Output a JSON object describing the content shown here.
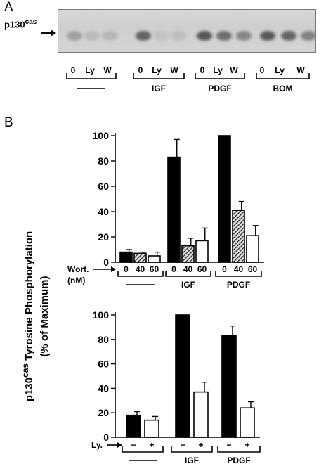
{
  "panel_a": {
    "letter": "A",
    "protein_label": "p130",
    "protein_sup": "cas",
    "lanes": [
      "0",
      "Ly",
      "W",
      "0",
      "Ly",
      "W",
      "0",
      "Ly",
      "W",
      "0",
      "Ly",
      "W"
    ],
    "lane_intensity": [
      0.25,
      0.12,
      0.14,
      0.55,
      0.08,
      0.1,
      0.62,
      0.5,
      0.38,
      0.6,
      0.55,
      0.4
    ],
    "groups": [
      "—",
      "IGF",
      "PDGF",
      "BOM"
    ]
  },
  "panel_b": {
    "letter": "B",
    "ylabel_main": "p130",
    "ylabel_sup": "cas",
    "ylabel_rest": "Tyrosine Phosphorylation",
    "ylabel_sub": "(% of Maximum)"
  },
  "chart_data": [
    {
      "type": "bar",
      "row_label": "Wort.",
      "row_sublabel": "(nM)",
      "categories": [
        "0",
        "40",
        "60",
        "0",
        "40",
        "60",
        "0",
        "40",
        "60"
      ],
      "groups": [
        "—",
        "IGF",
        "PDGF"
      ],
      "values": [
        8,
        7,
        5,
        83,
        13,
        17,
        100,
        41,
        21
      ],
      "errors": [
        2,
        1,
        3,
        14,
        6,
        10,
        0,
        7,
        8
      ],
      "fills": [
        "black",
        "hatched",
        "white",
        "black",
        "hatched",
        "white",
        "black",
        "hatched",
        "white"
      ],
      "ylim": [
        0,
        100
      ],
      "yticks": [
        "0",
        "20",
        "40",
        "60",
        "80",
        "100"
      ]
    },
    {
      "type": "bar",
      "row_label": "Ly.",
      "categories": [
        "−",
        "+",
        "−",
        "+",
        "−",
        "+"
      ],
      "groups": [
        "—",
        "IGF",
        "PDGF"
      ],
      "values": [
        18,
        14,
        100,
        37,
        83,
        24
      ],
      "errors": [
        3,
        3,
        0,
        8,
        8,
        5
      ],
      "fills": [
        "black",
        "white",
        "black",
        "white",
        "black",
        "white"
      ],
      "ylim": [
        0,
        100
      ],
      "yticks": [
        "0",
        "20",
        "40",
        "60",
        "80",
        "100"
      ]
    }
  ]
}
